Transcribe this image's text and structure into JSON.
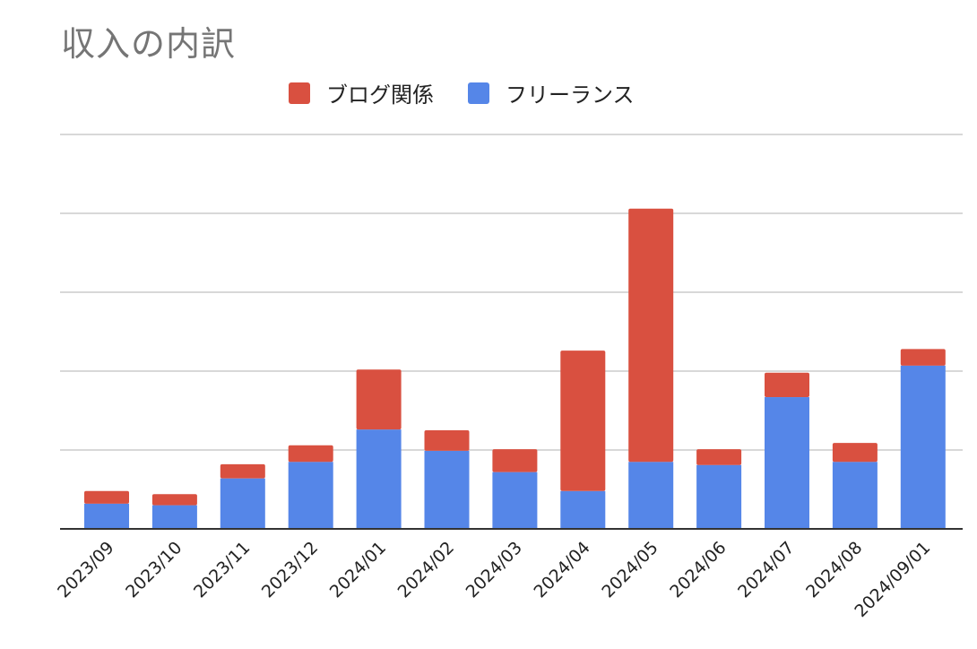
{
  "chart_data": {
    "type": "bar",
    "stacked": true,
    "title": "収入の内訳",
    "xlabel": "",
    "ylabel": "",
    "categories": [
      "2023/09",
      "2023/10",
      "2023/11",
      "2023/12",
      "2024/01",
      "2024/02",
      "2024/03",
      "2024/04",
      "2024/05",
      "2024/06",
      "2024/07",
      "2024/08",
      "2024/09/01"
    ],
    "series": [
      {
        "name": "フリーランス",
        "color": "#5586E8",
        "values": [
          0.32,
          0.3,
          0.64,
          0.85,
          1.26,
          0.99,
          0.72,
          0.48,
          0.85,
          0.81,
          1.67,
          0.85,
          2.07
        ]
      },
      {
        "name": "ブログ関係",
        "color": "#D95040",
        "values": [
          0.16,
          0.14,
          0.18,
          0.21,
          0.76,
          0.26,
          0.29,
          1.78,
          3.21,
          0.2,
          0.31,
          0.24,
          0.21
        ]
      }
    ],
    "legend_order": [
      "ブログ関係",
      "フリーランス"
    ],
    "legend_position": "top",
    "ylim": [
      0,
      5
    ],
    "y_gridlines": [
      1,
      2,
      3,
      4,
      5
    ],
    "grid": true,
    "y_tick_labels_shown": false,
    "x_tick_rotation": -45
  }
}
